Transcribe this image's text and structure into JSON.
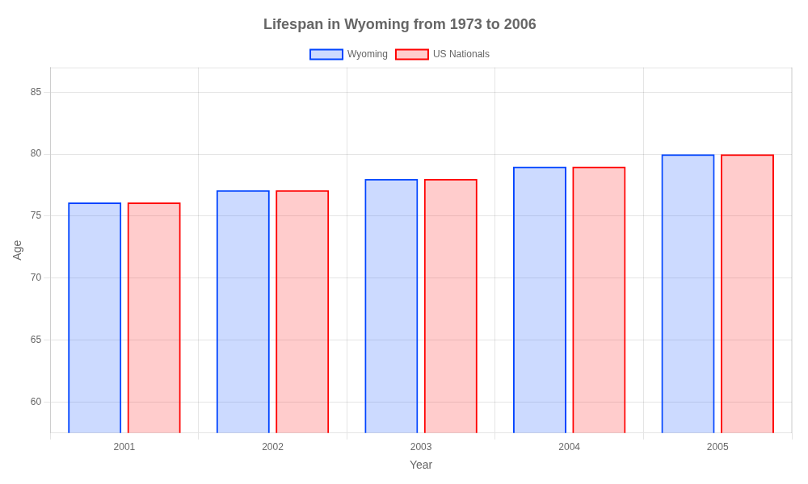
{
  "chart_data": {
    "type": "bar",
    "title": "Lifespan in Wyoming from 1973 to 2006",
    "xlabel": "Year",
    "ylabel": "Age",
    "categories": [
      "2001",
      "2002",
      "2003",
      "2004",
      "2005"
    ],
    "series": [
      {
        "name": "Wyoming",
        "color": "#0044ff",
        "values": [
          76.1,
          77.1,
          78.0,
          79.0,
          80.0
        ]
      },
      {
        "name": "US Nationals",
        "color": "#ff0000",
        "values": [
          76.1,
          77.1,
          78.0,
          79.0,
          80.0
        ]
      }
    ],
    "ylim": [
      57.5,
      87
    ],
    "yticks": [
      60,
      65,
      70,
      75,
      80,
      85
    ],
    "grid": true,
    "legend": "top"
  }
}
